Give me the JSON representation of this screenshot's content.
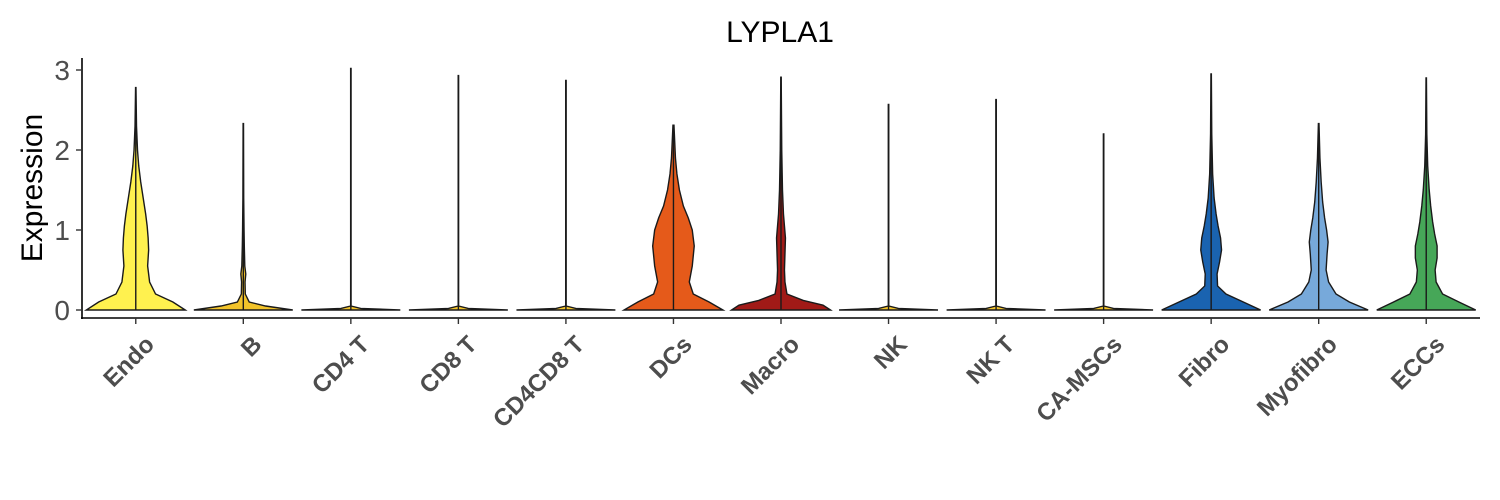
{
  "chart_data": {
    "type": "violin",
    "title": "LYPLA1",
    "xlabel": "",
    "ylabel": "Expression",
    "ylim": [
      -0.1,
      3.15
    ],
    "yticks": [
      0,
      1,
      2,
      3
    ],
    "legend": "none",
    "grid": false,
    "categories": [
      "Endo",
      "B",
      "CD4 T",
      "CD8 T",
      "CD4CD8 T",
      "DCs",
      "Macro",
      "NK",
      "NK T",
      "CA-MSCs",
      "Fibro",
      "Myofibro",
      "ECCs"
    ],
    "series": [
      {
        "category": "Endo",
        "color": "#FFF14F",
        "max": 2.78,
        "density": [
          [
            0,
            1
          ],
          [
            0.1,
            0.75
          ],
          [
            0.2,
            0.4
          ],
          [
            0.35,
            0.28
          ],
          [
            0.55,
            0.24
          ],
          [
            0.75,
            0.26
          ],
          [
            0.9,
            0.25
          ],
          [
            1.05,
            0.23
          ],
          [
            1.2,
            0.2
          ],
          [
            1.4,
            0.15
          ],
          [
            1.6,
            0.1
          ],
          [
            1.8,
            0.06
          ],
          [
            2.0,
            0.035
          ],
          [
            2.3,
            0.015
          ],
          [
            2.78,
            0.004
          ]
        ]
      },
      {
        "category": "B",
        "color": "#F2C32A",
        "max": 2.33,
        "density": [
          [
            0,
            1
          ],
          [
            0.05,
            0.45
          ],
          [
            0.1,
            0.12
          ],
          [
            0.2,
            0.04
          ],
          [
            0.35,
            0.035
          ],
          [
            0.45,
            0.05
          ],
          [
            0.55,
            0.03
          ],
          [
            0.8,
            0.02
          ],
          [
            1.0,
            0.015
          ],
          [
            1.4,
            0.008
          ],
          [
            2.33,
            0.004
          ]
        ]
      },
      {
        "category": "CD4 T",
        "color": "#F2C32A",
        "max": 3.02,
        "density": [
          [
            0,
            1
          ],
          [
            0.02,
            0.2
          ],
          [
            0.05,
            0.004
          ],
          [
            3.02,
            0.004
          ]
        ]
      },
      {
        "category": "CD8 T",
        "color": "#F2C32A",
        "max": 2.93,
        "density": [
          [
            0,
            1
          ],
          [
            0.02,
            0.2
          ],
          [
            0.05,
            0.004
          ],
          [
            2.93,
            0.004
          ]
        ]
      },
      {
        "category": "CD4CD8 T",
        "color": "#F2C32A",
        "max": 2.87,
        "density": [
          [
            0,
            1
          ],
          [
            0.02,
            0.2
          ],
          [
            0.05,
            0.004
          ],
          [
            2.87,
            0.004
          ]
        ]
      },
      {
        "category": "DCs",
        "color": "#E55A1A",
        "max": 2.31,
        "density": [
          [
            0,
            1
          ],
          [
            0.1,
            0.72
          ],
          [
            0.2,
            0.4
          ],
          [
            0.35,
            0.32
          ],
          [
            0.55,
            0.38
          ],
          [
            0.8,
            0.42
          ],
          [
            1.0,
            0.38
          ],
          [
            1.15,
            0.3
          ],
          [
            1.3,
            0.2
          ],
          [
            1.5,
            0.12
          ],
          [
            1.7,
            0.07
          ],
          [
            1.9,
            0.04
          ],
          [
            2.31,
            0.01
          ]
        ]
      },
      {
        "category": "Macro",
        "color": "#A11A17",
        "max": 2.91,
        "density": [
          [
            0,
            1
          ],
          [
            0.06,
            0.85
          ],
          [
            0.12,
            0.45
          ],
          [
            0.2,
            0.12
          ],
          [
            0.35,
            0.08
          ],
          [
            0.5,
            0.07
          ],
          [
            0.7,
            0.08
          ],
          [
            0.9,
            0.09
          ],
          [
            1.05,
            0.07
          ],
          [
            1.2,
            0.05
          ],
          [
            1.5,
            0.03
          ],
          [
            2.0,
            0.015
          ],
          [
            2.91,
            0.004
          ]
        ]
      },
      {
        "category": "NK",
        "color": "#F2C32A",
        "max": 2.57,
        "density": [
          [
            0,
            1
          ],
          [
            0.02,
            0.2
          ],
          [
            0.05,
            0.004
          ],
          [
            2.57,
            0.004
          ]
        ]
      },
      {
        "category": "NK T",
        "color": "#F2C32A",
        "max": 2.63,
        "density": [
          [
            0,
            1
          ],
          [
            0.02,
            0.2
          ],
          [
            0.05,
            0.004
          ],
          [
            2.63,
            0.004
          ]
        ]
      },
      {
        "category": "CA-MSCs",
        "color": "#F2C32A",
        "max": 2.2,
        "density": [
          [
            0,
            1
          ],
          [
            0.02,
            0.2
          ],
          [
            0.05,
            0.004
          ],
          [
            2.2,
            0.004
          ]
        ]
      },
      {
        "category": "Fibro",
        "color": "#1A63B0",
        "max": 2.95,
        "density": [
          [
            0,
            1
          ],
          [
            0.1,
            0.65
          ],
          [
            0.2,
            0.3
          ],
          [
            0.3,
            0.13
          ],
          [
            0.45,
            0.12
          ],
          [
            0.6,
            0.17
          ],
          [
            0.75,
            0.21
          ],
          [
            0.9,
            0.19
          ],
          [
            1.05,
            0.14
          ],
          [
            1.2,
            0.1
          ],
          [
            1.4,
            0.06
          ],
          [
            1.7,
            0.03
          ],
          [
            2.2,
            0.012
          ],
          [
            2.95,
            0.004
          ]
        ]
      },
      {
        "category": "Myofibro",
        "color": "#77A9DA",
        "max": 2.33,
        "density": [
          [
            0,
            1
          ],
          [
            0.1,
            0.62
          ],
          [
            0.2,
            0.35
          ],
          [
            0.35,
            0.2
          ],
          [
            0.5,
            0.15
          ],
          [
            0.7,
            0.17
          ],
          [
            0.85,
            0.19
          ],
          [
            1.0,
            0.16
          ],
          [
            1.15,
            0.12
          ],
          [
            1.35,
            0.08
          ],
          [
            1.6,
            0.05
          ],
          [
            1.9,
            0.025
          ],
          [
            2.33,
            0.006
          ]
        ]
      },
      {
        "category": "ECCs",
        "color": "#46A758",
        "max": 2.9,
        "density": [
          [
            0,
            1
          ],
          [
            0.1,
            0.66
          ],
          [
            0.2,
            0.33
          ],
          [
            0.35,
            0.2
          ],
          [
            0.5,
            0.18
          ],
          [
            0.65,
            0.22
          ],
          [
            0.8,
            0.22
          ],
          [
            0.95,
            0.17
          ],
          [
            1.1,
            0.13
          ],
          [
            1.3,
            0.09
          ],
          [
            1.5,
            0.06
          ],
          [
            1.8,
            0.03
          ],
          [
            2.2,
            0.012
          ],
          [
            2.9,
            0.004
          ]
        ]
      }
    ]
  }
}
